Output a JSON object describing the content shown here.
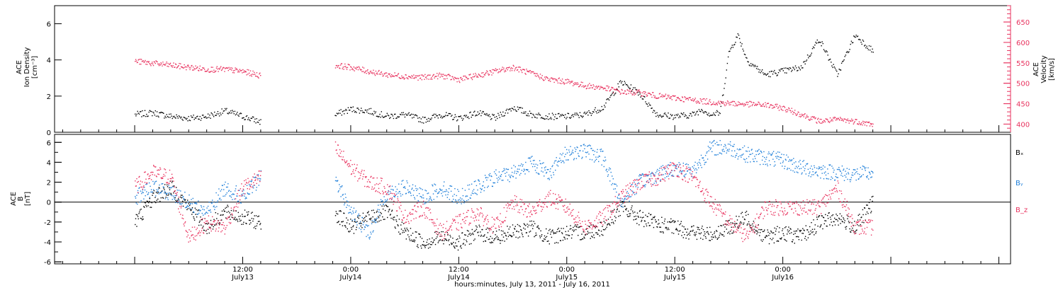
{
  "colors": {
    "bx": "#000000",
    "by": "#1f7fd9",
    "bz": "#e8335f",
    "axis": "#000000"
  },
  "chart_data": [
    {
      "type": "scatter",
      "panel": "top",
      "ylabel_left": [
        "ACE",
        "Ion Density",
        "[cm⁻³]"
      ],
      "ylabel_right": [
        "ACE",
        "Velocity",
        "[km/s]"
      ],
      "ylim_left": [
        0,
        7
      ],
      "ylim_right": [
        380,
        690
      ],
      "yticks_left": [
        0,
        2,
        4,
        6
      ],
      "yticks_right": [
        400,
        450,
        500,
        550,
        600,
        650
      ],
      "gaps_hours": [
        [
          14.0,
          22.2
        ]
      ],
      "series": [
        {
          "key": "density",
          "axis": "left",
          "color": "#000000",
          "x": [
            0,
            2,
            4,
            6,
            8,
            10,
            12,
            13.9,
            22.2,
            24,
            26,
            28,
            30,
            32,
            34,
            36,
            38,
            40,
            42,
            44,
            46,
            48,
            50,
            52,
            54,
            56,
            58,
            60,
            62,
            63,
            64,
            65,
            66,
            67,
            68,
            70,
            72,
            74,
            76,
            78,
            80,
            82
          ],
          "y": [
            1.0,
            1.1,
            0.9,
            0.8,
            0.9,
            1.2,
            0.9,
            0.6,
            1.0,
            1.3,
            1.2,
            0.9,
            1.0,
            0.7,
            1.0,
            0.8,
            1.1,
            0.8,
            1.4,
            1.0,
            0.9,
            0.9,
            1.0,
            1.4,
            2.8,
            2.2,
            1.0,
            0.9,
            1.0,
            1.3,
            1.0,
            1.1,
            4.5,
            5.4,
            4.0,
            3.2,
            3.4,
            3.6,
            5.2,
            3.2,
            5.4,
            4.5
          ]
        },
        {
          "key": "velocity",
          "axis": "right",
          "color": "#e8335f",
          "x": [
            0,
            2,
            4,
            6,
            8,
            10,
            12,
            13.9,
            22.2,
            24,
            26,
            28,
            30,
            32,
            34,
            36,
            38,
            40,
            42,
            44,
            46,
            48,
            50,
            52,
            54,
            56,
            58,
            60,
            62,
            64,
            66,
            68,
            70,
            72,
            74,
            76,
            78,
            80,
            82
          ],
          "y": [
            555,
            550,
            545,
            540,
            535,
            535,
            530,
            520,
            545,
            540,
            530,
            522,
            518,
            515,
            520,
            510,
            520,
            530,
            540,
            525,
            510,
            505,
            495,
            490,
            480,
            478,
            470,
            465,
            460,
            455,
            452,
            450,
            448,
            440,
            425,
            408,
            412,
            408,
            400
          ]
        }
      ]
    },
    {
      "type": "scatter",
      "panel": "bottom",
      "ylabel": [
        "ACE",
        "B",
        "[nT]"
      ],
      "ylim": [
        -6.2,
        6.8
      ],
      "yticks": [
        -6,
        -4,
        -2,
        0,
        2,
        4,
        6
      ],
      "zero_line": true,
      "gaps_hours": [
        [
          14.0,
          22.2
        ]
      ],
      "legend": [
        "Bₓ",
        "Bᵧ",
        "B_z"
      ],
      "series": [
        {
          "key": "bx",
          "color": "#000000",
          "x": [
            0,
            2,
            4,
            6,
            8,
            10,
            12,
            13.9,
            22.2,
            24,
            26,
            28,
            30,
            32,
            34,
            36,
            38,
            40,
            42,
            44,
            46,
            48,
            50,
            52,
            54,
            56,
            58,
            60,
            62,
            64,
            66,
            68,
            70,
            72,
            74,
            76,
            78,
            80,
            82
          ],
          "y": [
            -2.0,
            0.5,
            1.5,
            -0.5,
            -2.5,
            -1.0,
            -1.5,
            -2.0,
            -1.0,
            -2.5,
            -1.5,
            -1.0,
            -3.0,
            -4.0,
            -3.5,
            -4.0,
            -3.0,
            -3.5,
            -3.0,
            -2.5,
            -3.5,
            -3.0,
            -3.0,
            -2.5,
            -0.5,
            -1.5,
            -2.2,
            -2.5,
            -3.0,
            -3.2,
            -2.5,
            -1.5,
            -3.5,
            -3.0,
            -3.5,
            -2.0,
            -1.5,
            -2.5,
            0.0
          ]
        },
        {
          "key": "by",
          "color": "#1f7fd9",
          "x": [
            0,
            2,
            4,
            6,
            8,
            10,
            12,
            13.9,
            22.2,
            24,
            26,
            28,
            30,
            32,
            34,
            36,
            38,
            40,
            42,
            44,
            46,
            48,
            50,
            52,
            54,
            56,
            58,
            60,
            62,
            64,
            66,
            68,
            70,
            72,
            74,
            76,
            78,
            80,
            82
          ],
          "y": [
            0.5,
            1.5,
            1.0,
            0.0,
            -1.0,
            1.5,
            0.5,
            2.5,
            2.5,
            -1.0,
            -3.0,
            1.0,
            1.5,
            0.5,
            1.5,
            0.5,
            1.5,
            2.5,
            3.0,
            4.0,
            3.0,
            5.0,
            5.2,
            4.5,
            0.0,
            2.0,
            2.8,
            3.5,
            3.2,
            5.5,
            5.5,
            4.8,
            4.5,
            4.2,
            3.5,
            3.2,
            3.0,
            2.8,
            3.0
          ]
        },
        {
          "key": "bz",
          "color": "#e8335f",
          "x": [
            0,
            2,
            4,
            6,
            8,
            10,
            12,
            13.9,
            22.2,
            24,
            26,
            28,
            30,
            32,
            34,
            36,
            38,
            40,
            42,
            44,
            46,
            48,
            50,
            52,
            54,
            56,
            58,
            60,
            62,
            64,
            66,
            68,
            70,
            72,
            74,
            76,
            78,
            80,
            82
          ],
          "y": [
            1.5,
            3.0,
            2.5,
            -3.5,
            -2.0,
            -2.5,
            1.5,
            2.5,
            5.5,
            3.5,
            2.0,
            1.5,
            -1.5,
            -0.5,
            -3.0,
            -2.0,
            -1.0,
            -2.5,
            0.0,
            -1.0,
            0.5,
            -0.5,
            -2.5,
            -1.5,
            0.5,
            2.0,
            2.5,
            3.5,
            2.5,
            0.0,
            -2.0,
            -3.5,
            -0.5,
            -0.5,
            -0.5,
            -0.5,
            1.5,
            -2.5,
            -2.5
          ]
        }
      ]
    }
  ],
  "x_axis": {
    "range_hours": [
      -8.9,
      97.3
    ],
    "ticks": [
      {
        "h": 12,
        "t": "12:00",
        "d": "July13"
      },
      {
        "h": 24,
        "t": "0:00",
        "d": "July14"
      },
      {
        "h": 36,
        "t": "12:00",
        "d": "July14"
      },
      {
        "h": 48,
        "t": "0:00",
        "d": "July15"
      },
      {
        "h": 60,
        "t": "12:00",
        "d": "July15"
      },
      {
        "h": 72,
        "t": "0:00",
        "d": "July16"
      }
    ],
    "caption": "hours:minutes, July 13, 2011 - July 16, 2011"
  }
}
